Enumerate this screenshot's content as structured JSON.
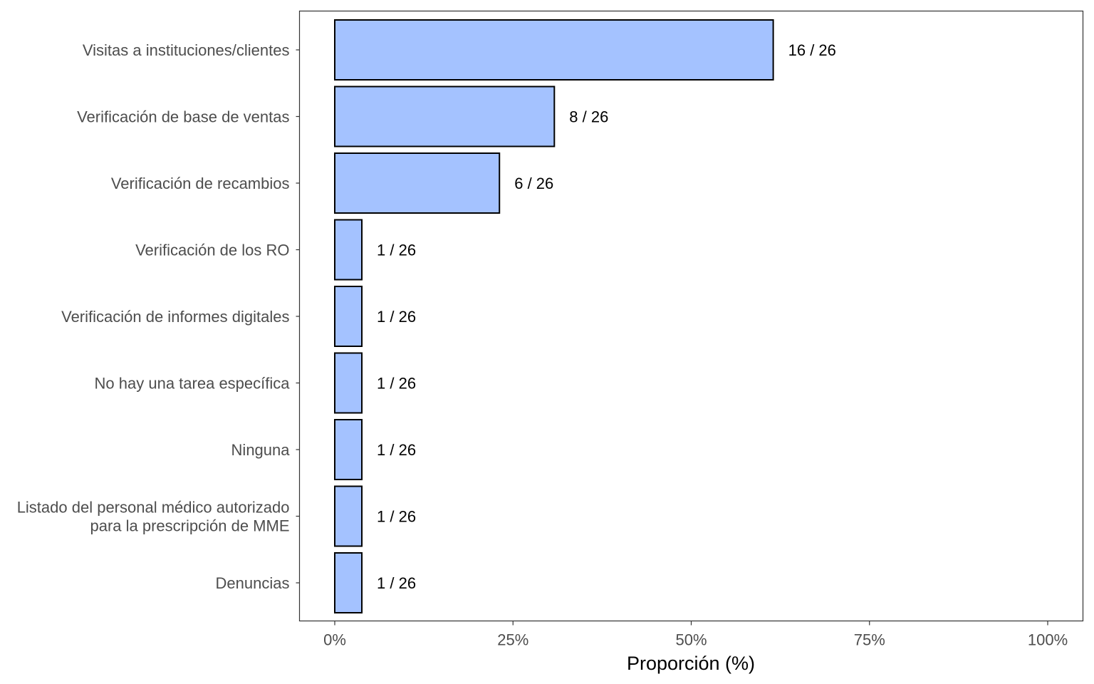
{
  "chart_data": {
    "type": "bar",
    "orientation": "horizontal",
    "title": "",
    "xlabel": "Proporción (%)",
    "ylabel": "",
    "xlim": [
      0,
      100
    ],
    "x_ticks": [
      0,
      25,
      50,
      75,
      100
    ],
    "x_tick_labels": [
      "0%",
      "25%",
      "50%",
      "75%",
      "100%"
    ],
    "grid": false,
    "legend": "none",
    "colors": {
      "bar_fill": "#A4C2FF",
      "bar_stroke": "#000000",
      "panel_border": "#333333",
      "tick_text": "#4d4d4d"
    },
    "categories": [
      [
        "Visitas a instituciones/clientes"
      ],
      [
        "Verificación de base de ventas"
      ],
      [
        "Verificación de recambios"
      ],
      [
        "Verificación de los RO"
      ],
      [
        "Verificación de informes digitales"
      ],
      [
        "No hay una tarea específica"
      ],
      [
        "Ninguna"
      ],
      [
        "Listado del personal médico autorizado",
        "para la prescripción de MME"
      ],
      [
        "Denuncias"
      ]
    ],
    "counts": [
      16,
      8,
      6,
      1,
      1,
      1,
      1,
      1,
      1
    ],
    "total": 26,
    "values": [
      61.5,
      30.8,
      23.1,
      3.8,
      3.8,
      3.8,
      3.8,
      3.8,
      3.8
    ],
    "data_labels": [
      "16 / 26",
      "8 / 26",
      "6 / 26",
      "1 / 26",
      "1 / 26",
      "1 / 26",
      "1 / 26",
      "1 / 26",
      "1 / 26"
    ]
  }
}
